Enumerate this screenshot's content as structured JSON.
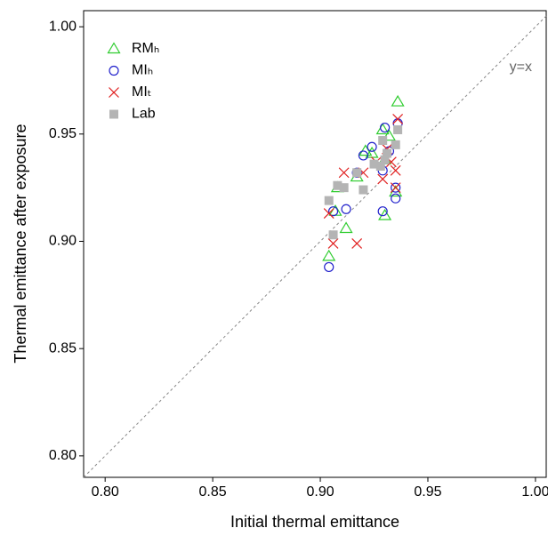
{
  "chart_data": {
    "type": "scatter",
    "x_label": "Initial thermal emittance",
    "y_label": "Thermal emittance after exposure",
    "annotation": "y=x",
    "xlim": [
      0.79,
      1.005
    ],
    "ylim": [
      0.79,
      1.0075
    ],
    "xticks": [
      {
        "value": 0.8,
        "label": "0.80"
      },
      0.85,
      {
        "value": 0.9,
        "label": "0.90"
      },
      0.95,
      {
        "value": 1.0,
        "label": "1.00"
      }
    ],
    "yticks": [
      {
        "value": 0.8,
        "label": "0.80"
      },
      0.85,
      {
        "value": 0.9,
        "label": "0.90"
      },
      0.95,
      {
        "value": 1.0,
        "label": "1.00"
      }
    ],
    "series": [
      {
        "name": "RMₕ",
        "color": "#2ecc2e",
        "marker": "triangle",
        "x": [
          0.904,
          0.912,
          0.907,
          0.908,
          0.917,
          0.921,
          0.924,
          0.93,
          0.929,
          0.932,
          0.936,
          0.935,
          0.93
        ],
        "values": [
          0.893,
          0.906,
          0.914,
          0.925,
          0.93,
          0.942,
          0.941,
          0.912,
          0.952,
          0.949,
          0.965,
          0.923,
          0.938
        ]
      },
      {
        "name": "MIₕ",
        "color": "#2222cc",
        "marker": "circle",
        "x": [
          0.904,
          0.906,
          0.912,
          0.92,
          0.924,
          0.929,
          0.929,
          0.93,
          0.932,
          0.935,
          0.935,
          0.936,
          0.917
        ],
        "values": [
          0.888,
          0.914,
          0.915,
          0.94,
          0.944,
          0.914,
          0.933,
          0.953,
          0.942,
          0.925,
          0.92,
          0.955,
          0.932
        ]
      },
      {
        "name": "MIₜ",
        "color": "#e02020",
        "marker": "x",
        "x": [
          0.904,
          0.906,
          0.911,
          0.917,
          0.92,
          0.926,
          0.929,
          0.931,
          0.933,
          0.935,
          0.936,
          0.935
        ],
        "values": [
          0.913,
          0.899,
          0.932,
          0.899,
          0.932,
          0.937,
          0.929,
          0.943,
          0.937,
          0.933,
          0.957,
          0.925
        ]
      },
      {
        "name": "Lab",
        "color": "#b4b4b4",
        "marker": "square",
        "x": [
          0.904,
          0.906,
          0.908,
          0.911,
          0.917,
          0.92,
          0.925,
          0.929,
          0.93,
          0.931,
          0.935,
          0.936,
          0.928
        ],
        "values": [
          0.919,
          0.903,
          0.926,
          0.925,
          0.932,
          0.924,
          0.936,
          0.947,
          0.938,
          0.941,
          0.945,
          0.952,
          0.935
        ]
      }
    ]
  }
}
